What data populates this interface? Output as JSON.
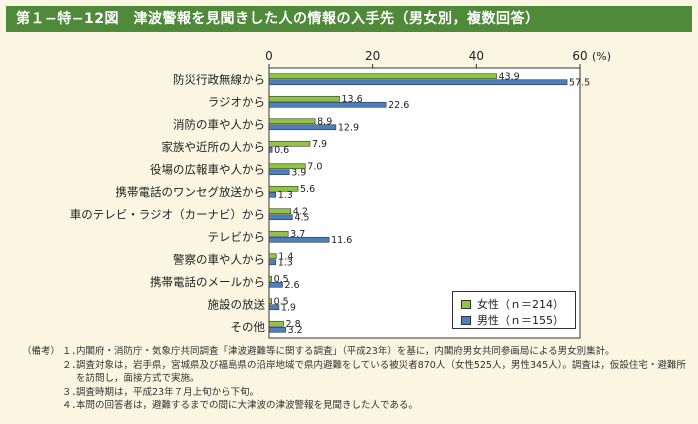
{
  "header": {
    "title": "第１−特−12図　津波警報を見聞きした人の情報の入手先（男女別，複数回答）"
  },
  "chart_data": {
    "type": "bar",
    "orientation": "horizontal",
    "categories": [
      "防災行政無線から",
      "ラジオから",
      "消防の車や人から",
      "家族や近所の人から",
      "役場の広報車や人から",
      "携帯電話のワンセグ放送から",
      "車のテレビ・ラジオ（カーナビ）から",
      "テレビから",
      "警察の車や人から",
      "携帯電話のメールから",
      "施設の放送",
      "その他"
    ],
    "series": [
      {
        "name": "女性（ｎ＝214）",
        "color": "#8ec63f",
        "values": [
          43.9,
          13.6,
          8.9,
          7.9,
          7.0,
          5.6,
          4.2,
          3.7,
          1.4,
          0.5,
          0.5,
          2.8
        ]
      },
      {
        "name": "男性（ｎ＝155）",
        "color": "#4a7fc1",
        "values": [
          57.5,
          22.6,
          12.9,
          0.6,
          3.9,
          1.3,
          4.5,
          11.6,
          1.3,
          2.6,
          1.9,
          3.2
        ]
      }
    ],
    "x_ticks": [
      "0",
      "20",
      "40",
      "60"
    ],
    "x_unit": "(%)",
    "xlim": [
      0,
      60
    ],
    "legend_position": "bottom-right"
  },
  "notes": {
    "label": "（備考）",
    "items": [
      {
        "num": "１．",
        "text": "内閣府・消防庁・気象庁共同調査「津波避難等に関する調査」（平成23年）を基に，内閣府男女共同参画局による男女別集計。"
      },
      {
        "num": "２．",
        "text": "調査対象は，岩手県，宮城県及び福島県の沿岸地域で県内避難をしている被災者870人（女性525人，男性345人）。調査は，仮設住宅・避難所を訪問し，面接方式で実施。"
      },
      {
        "num": "３．",
        "text": "調査時期は，平成23年７月上旬から下旬。"
      },
      {
        "num": "４．",
        "text": "本問の回答者は，避難するまでの間に大津波の津波警報を見聞きした人である。"
      }
    ]
  }
}
